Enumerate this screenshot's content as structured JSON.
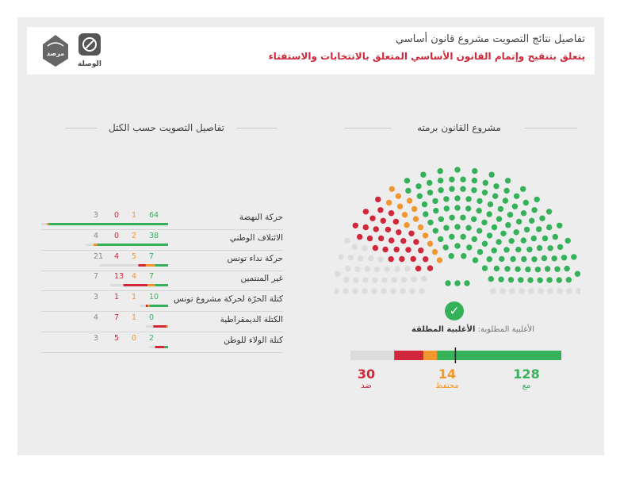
{
  "header": {
    "title": "تفاصيل نتائج التصويت مشروع قانون أساسي",
    "subtitle": "يتعلق بتنقيح وإتمام القانون الأساسي المتعلق بالانتخابات والاستفتاء",
    "logo_alwasla": "الوصلة",
    "logo_marsad": "مرصد"
  },
  "colors": {
    "for": "#35b15a",
    "abstain": "#f2972e",
    "against": "#d0273a",
    "absent": "#dcdcdc"
  },
  "chart_data": [
    {
      "type": "hemicycle",
      "title": "مشروع القانون برمته",
      "seats_total": 217,
      "values": {
        "for": 128,
        "abstain": 14,
        "against": 30
      },
      "required_majority_label": "الأغلبية المطلوبة:",
      "required_majority_value": "الأغلبية المطلقة",
      "required_majority_seats": 109,
      "totals": [
        {
          "key": "for",
          "value": 128,
          "label": "مع"
        },
        {
          "key": "abstain",
          "value": 14,
          "label": "محتفظ"
        },
        {
          "key": "against",
          "value": 30,
          "label": "ضد"
        }
      ]
    },
    {
      "type": "table",
      "title": "تفاصيل التصويت حسب الكتل",
      "rows": [
        {
          "name": "حركة النهضة",
          "for": 64,
          "abstain": 1,
          "against": 0,
          "absent": 3,
          "seats": 68
        },
        {
          "name": "الائتلاف الوطني",
          "for": 38,
          "abstain": 2,
          "against": 0,
          "absent": 4,
          "seats": 44
        },
        {
          "name": "حركة نداء تونس",
          "for": 7,
          "abstain": 5,
          "against": 4,
          "absent": 21,
          "seats": 37
        },
        {
          "name": "غير المنتمين",
          "for": 7,
          "abstain": 4,
          "against": 13,
          "absent": 7,
          "seats": 31
        },
        {
          "name": "كتلة الحرّة لحركة مشروع تونس",
          "for": 10,
          "abstain": 1,
          "against": 1,
          "absent": 3,
          "seats": 15
        },
        {
          "name": "الكتلة الديمقراطية",
          "for": 0,
          "abstain": 1,
          "against": 7,
          "absent": 4,
          "seats": 12
        },
        {
          "name": "كتلة الولاء للوطن",
          "for": 2,
          "abstain": 0,
          "against": 5,
          "absent": 3,
          "seats": 10
        }
      ]
    }
  ]
}
